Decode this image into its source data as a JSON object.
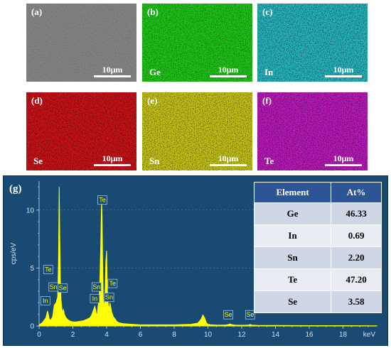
{
  "maps": [
    {
      "label": "(a)",
      "element": "",
      "scale": "10μm",
      "color": "#8a8a8a",
      "dark": "#4a4a4a"
    },
    {
      "label": "(b)",
      "element": "Ge",
      "scale": "10μm",
      "color": "#22c21a",
      "dark": "#0a5a08"
    },
    {
      "label": "(c)",
      "element": "In",
      "scale": "10μm",
      "color": "#2ab4bc",
      "dark": "#0a3c44"
    },
    {
      "label": "(d)",
      "element": "Se",
      "scale": "10μm",
      "color": "#c8141a",
      "dark": "#4a0406"
    },
    {
      "label": "(e)",
      "element": "Sn",
      "scale": "10μm",
      "color": "#c4c21c",
      "dark": "#484604"
    },
    {
      "label": "(f)",
      "element": "Te",
      "scale": "10μm",
      "color": "#b81cb8",
      "dark": "#420842"
    }
  ],
  "eds": {
    "label": "(g)",
    "table": {
      "headers": [
        "Element",
        "At%"
      ],
      "rows": [
        [
          "Ge",
          "46.33"
        ],
        [
          "In",
          "0.69"
        ],
        [
          "Sn",
          "2.20"
        ],
        [
          "Te",
          "47.20"
        ],
        [
          "Se",
          "3.58"
        ]
      ]
    }
  },
  "chart_data": {
    "type": "line",
    "xlabel": "keV",
    "ylabel": "cps/eV",
    "xlim": [
      0,
      20
    ],
    "ylim": [
      0,
      12.5
    ],
    "xticks": [
      "0",
      "2",
      "4",
      "6",
      "8",
      "10",
      "12",
      "14",
      "16",
      "18"
    ],
    "yticks": [
      "0",
      "5",
      "10"
    ],
    "series": [
      {
        "color": "#ffff00",
        "x": [
          0.0,
          0.2,
          0.4,
          0.5,
          0.55,
          0.6,
          0.7,
          0.8,
          0.9,
          1.0,
          1.1,
          1.15,
          1.19,
          1.22,
          1.26,
          1.3,
          1.35,
          1.4,
          1.45,
          1.5,
          1.6,
          1.7,
          1.8,
          1.9,
          2.0,
          2.2,
          2.4,
          2.6,
          2.8,
          3.0,
          3.1,
          3.2,
          3.3,
          3.35,
          3.4,
          3.45,
          3.5,
          3.55,
          3.6,
          3.65,
          3.7,
          3.73,
          3.77,
          3.8,
          3.85,
          3.9,
          3.95,
          4.0,
          4.03,
          4.06,
          4.1,
          4.15,
          4.2,
          4.3,
          4.4,
          4.5,
          4.6,
          4.7,
          4.8,
          5.0,
          5.5,
          6.0,
          7.0,
          8.0,
          9.0,
          9.4,
          9.6,
          9.7,
          9.8,
          9.9,
          10.0,
          10.2,
          10.5,
          11.0,
          11.2,
          11.3,
          11.4,
          11.6,
          12.0,
          12.4,
          12.5,
          12.6,
          13.0,
          14.0,
          16.0,
          18.0,
          20.0
        ],
        "y": [
          0.1,
          0.3,
          0.7,
          1.3,
          1.0,
          0.6,
          0.5,
          0.8,
          1.8,
          2.0,
          2.5,
          5.5,
          12.0,
          8.0,
          4.0,
          2.2,
          1.5,
          1.2,
          1.4,
          1.0,
          0.7,
          0.55,
          0.45,
          0.4,
          0.35,
          0.35,
          0.4,
          0.45,
          0.55,
          0.7,
          0.9,
          1.3,
          1.7,
          1.4,
          0.9,
          1.1,
          1.8,
          2.2,
          4.0,
          7.0,
          11.0,
          9.5,
          5.0,
          2.4,
          1.6,
          2.2,
          5.5,
          6.5,
          4.0,
          2.4,
          1.8,
          1.5,
          2.0,
          1.2,
          0.8,
          0.6,
          0.4,
          0.3,
          0.25,
          0.2,
          0.15,
          0.1,
          0.1,
          0.1,
          0.15,
          0.25,
          0.6,
          0.95,
          0.7,
          0.3,
          0.15,
          0.1,
          0.08,
          0.08,
          0.12,
          0.18,
          0.12,
          0.08,
          0.06,
          0.08,
          0.13,
          0.08,
          0.05,
          0.04,
          0.03,
          0.03,
          0.02
        ]
      }
    ],
    "annotations": [
      {
        "text": "In",
        "x": 0.37,
        "y": 1.8
      },
      {
        "text": "Te",
        "x": 0.54,
        "y": 4.5
      },
      {
        "text": "Sn",
        "x": 0.85,
        "y": 3.0
      },
      {
        "text": "Se",
        "x": 1.4,
        "y": 2.9
      },
      {
        "text": "In",
        "x": 3.3,
        "y": 2.0
      },
      {
        "text": "Sn",
        "x": 3.4,
        "y": 3.0
      },
      {
        "text": "Te",
        "x": 3.75,
        "y": 10.5
      },
      {
        "text": "Sn",
        "x": 4.15,
        "y": 2.1
      },
      {
        "text": "Te",
        "x": 4.35,
        "y": 3.3
      },
      {
        "text": "Se",
        "x": 11.2,
        "y": 0.6
      },
      {
        "text": "Se",
        "x": 12.5,
        "y": 0.6
      }
    ]
  }
}
